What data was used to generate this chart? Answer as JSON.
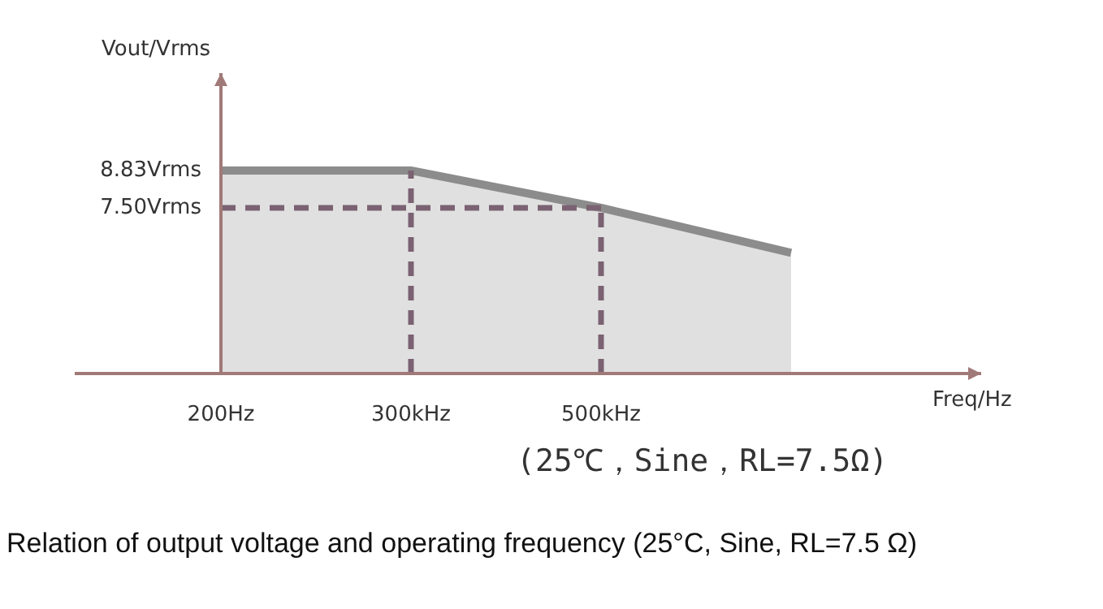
{
  "chart_data": {
    "type": "area",
    "xlabel": "Freq/Hz",
    "ylabel": "Vout/Vrms",
    "categories": [
      "200Hz",
      "300kHz",
      "500kHz",
      null,
      null
    ],
    "series": [
      {
        "color": "#8c8c8c",
        "values": [
          8.83,
          8.83,
          7.5,
          5.9,
          null
        ]
      }
    ],
    "ylim": [
      1.6,
      12.3
    ],
    "yticks": [
      {
        "value": 8.83,
        "label": "8.83Vrms"
      },
      {
        "value": 7.5,
        "label": "7.50Vrms"
      }
    ],
    "ref_lines": [
      {
        "axis": "x",
        "value": "300kHz",
        "color": "#7b6272",
        "line_style": "dashed"
      },
      {
        "axis": "x",
        "value": "500kHz",
        "color": "#7b6272",
        "line_style": "dashed"
      },
      {
        "axis": "y",
        "value": 7.5,
        "color": "#7b6272",
        "line_style": "dashed"
      }
    ],
    "annotations": [
      "(25℃，Sine，RL=7.5Ω)",
      "Relation of output voltage and operating frequency (25°C, Sine, RL=7.5 Ω)"
    ]
  }
}
